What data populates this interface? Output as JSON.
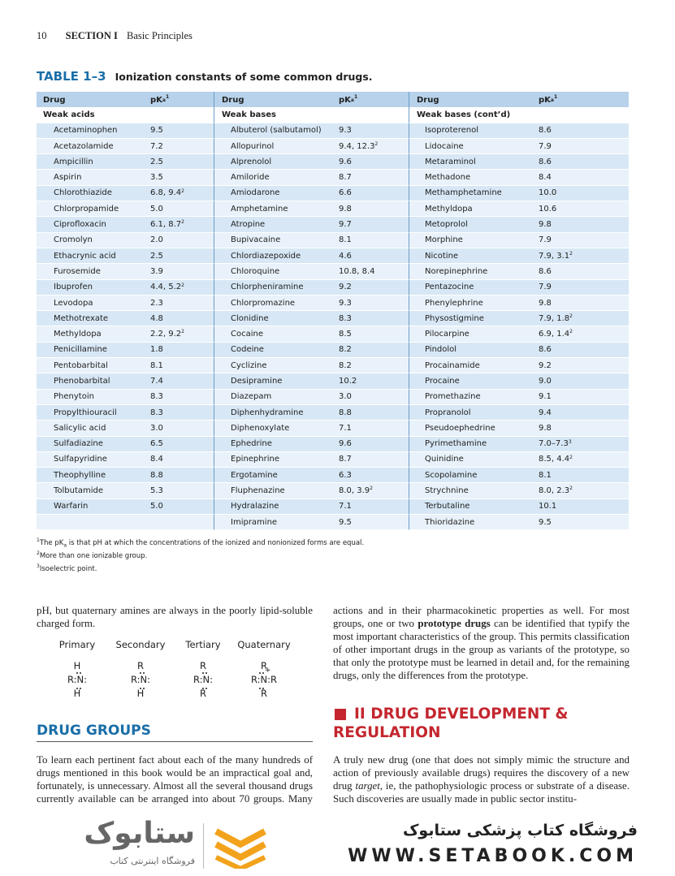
{
  "header": {
    "page_number": "10",
    "section": "SECTION I",
    "section_title": "Basic Principles"
  },
  "table": {
    "label": "TABLE 1–3",
    "caption": "Ionization constants of some common drugs.",
    "columns": [
      {
        "drug_header": "Drug",
        "pka_header": [
          "pK",
          "a",
          "1"
        ],
        "group": "Weak acids",
        "rows": [
          {
            "drug": "Acetaminophen",
            "pka": "9.5"
          },
          {
            "drug": "Acetazolamide",
            "pka": "7.2"
          },
          {
            "drug": "Ampicillin",
            "pka": "2.5"
          },
          {
            "drug": "Aspirin",
            "pka": "3.5"
          },
          {
            "drug": "Chlorothiazide",
            "pka": "6.8, 9.4",
            "note": "2"
          },
          {
            "drug": "Chlorpropamide",
            "pka": "5.0"
          },
          {
            "drug": "Ciprofloxacin",
            "pka": "6.1, 8.7",
            "note": "2"
          },
          {
            "drug": "Cromolyn",
            "pka": "2.0"
          },
          {
            "drug": "Ethacrynic acid",
            "pka": "2.5"
          },
          {
            "drug": "Furosemide",
            "pka": "3.9"
          },
          {
            "drug": "Ibuprofen",
            "pka": "4.4, 5.2",
            "note": "2"
          },
          {
            "drug": "Levodopa",
            "pka": "2.3"
          },
          {
            "drug": "Methotrexate",
            "pka": "4.8"
          },
          {
            "drug": "Methyldopa",
            "pka": "2.2, 9.2",
            "note": "2"
          },
          {
            "drug": "Penicillamine",
            "pka": "1.8"
          },
          {
            "drug": "Pentobarbital",
            "pka": "8.1"
          },
          {
            "drug": "Phenobarbital",
            "pka": "7.4"
          },
          {
            "drug": "Phenytoin",
            "pka": "8.3"
          },
          {
            "drug": "Propylthiouracil",
            "pka": "8.3"
          },
          {
            "drug": "Salicylic acid",
            "pka": "3.0"
          },
          {
            "drug": "Sulfadiazine",
            "pka": "6.5"
          },
          {
            "drug": "Sulfapyridine",
            "pka": "8.4"
          },
          {
            "drug": "Theophylline",
            "pka": "8.8"
          },
          {
            "drug": "Tolbutamide",
            "pka": "5.3"
          },
          {
            "drug": "Warfarin",
            "pka": "5.0"
          }
        ]
      },
      {
        "drug_header": "Drug",
        "pka_header": [
          "pK",
          "a",
          "1"
        ],
        "group": "Weak bases",
        "rows": [
          {
            "drug": "Albuterol (salbutamol)",
            "pka": "9.3"
          },
          {
            "drug": "Allopurinol",
            "pka": "9.4, 12.3",
            "note": "2"
          },
          {
            "drug": "Alprenolol",
            "pka": "9.6"
          },
          {
            "drug": "Amiloride",
            "pka": "8.7"
          },
          {
            "drug": "Amiodarone",
            "pka": "6.6"
          },
          {
            "drug": "Amphetamine",
            "pka": "9.8"
          },
          {
            "drug": "Atropine",
            "pka": "9.7"
          },
          {
            "drug": "Bupivacaine",
            "pka": "8.1"
          },
          {
            "drug": "Chlordiazepoxide",
            "pka": "4.6"
          },
          {
            "drug": "Chloroquine",
            "pka": "10.8, 8.4"
          },
          {
            "drug": "Chlorpheniramine",
            "pka": "9.2"
          },
          {
            "drug": "Chlorpromazine",
            "pka": "9.3"
          },
          {
            "drug": "Clonidine",
            "pka": "8.3"
          },
          {
            "drug": "Cocaine",
            "pka": "8.5"
          },
          {
            "drug": "Codeine",
            "pka": "8.2"
          },
          {
            "drug": "Cyclizine",
            "pka": "8.2"
          },
          {
            "drug": "Desipramine",
            "pka": "10.2"
          },
          {
            "drug": "Diazepam",
            "pka": "3.0"
          },
          {
            "drug": "Diphenhydramine",
            "pka": "8.8"
          },
          {
            "drug": "Diphenoxylate",
            "pka": "7.1"
          },
          {
            "drug": "Ephedrine",
            "pka": "9.6"
          },
          {
            "drug": "Epinephrine",
            "pka": "8.7"
          },
          {
            "drug": "Ergotamine",
            "pka": "6.3"
          },
          {
            "drug": "Fluphenazine",
            "pka": "8.0, 3.9",
            "note": "2"
          },
          {
            "drug": "Hydralazine",
            "pka": "7.1"
          },
          {
            "drug": "Imipramine",
            "pka": "9.5"
          }
        ]
      },
      {
        "drug_header": "Drug",
        "pka_header": [
          "pK",
          "a",
          "1"
        ],
        "group": "Weak bases (cont’d)",
        "rows": [
          {
            "drug": "Isoproterenol",
            "pka": "8.6"
          },
          {
            "drug": "Lidocaine",
            "pka": "7.9"
          },
          {
            "drug": "Metaraminol",
            "pka": "8.6"
          },
          {
            "drug": "Methadone",
            "pka": "8.4"
          },
          {
            "drug": "Methamphetamine",
            "pka": "10.0"
          },
          {
            "drug": "Methyldopa",
            "pka": "10.6"
          },
          {
            "drug": "Metoprolol",
            "pka": "9.8"
          },
          {
            "drug": "Morphine",
            "pka": "7.9"
          },
          {
            "drug": "Nicotine",
            "pka": "7.9, 3.1",
            "note": "2"
          },
          {
            "drug": "Norepinephrine",
            "pka": "8.6"
          },
          {
            "drug": "Pentazocine",
            "pka": "7.9"
          },
          {
            "drug": "Phenylephrine",
            "pka": "9.8"
          },
          {
            "drug": "Physostigmine",
            "pka": "7.9, 1.8",
            "note": "2"
          },
          {
            "drug": "Pilocarpine",
            "pka": "6.9, 1.4",
            "note": "2"
          },
          {
            "drug": "Pindolol",
            "pka": "8.6"
          },
          {
            "drug": "Procainamide",
            "pka": "9.2"
          },
          {
            "drug": "Procaine",
            "pka": "9.0"
          },
          {
            "drug": "Promethazine",
            "pka": "9.1"
          },
          {
            "drug": "Propranolol",
            "pka": "9.4"
          },
          {
            "drug": "Pseudoephedrine",
            "pka": "9.8"
          },
          {
            "drug": "Pyrimethamine",
            "pka": "7.0–7.3",
            "note": "3"
          },
          {
            "drug": "Quinidine",
            "pka": "8.5, 4.4",
            "note": "2"
          },
          {
            "drug": "Scopolamine",
            "pka": "8.1"
          },
          {
            "drug": "Strychnine",
            "pka": "8.0, 2.3",
            "note": "2"
          },
          {
            "drug": "Terbutaline",
            "pka": "10.1"
          },
          {
            "drug": "Thioridazine",
            "pka": "9.5"
          }
        ]
      }
    ],
    "footnotes": [
      {
        "mark": "1",
        "parts": [
          "The pK",
          "a",
          " is that pH at which the concentrations of the ionized and nonionized forms are equal."
        ]
      },
      {
        "mark": "2",
        "parts": [
          "More than one ionizable group."
        ]
      },
      {
        "mark": "3",
        "parts": [
          "Isoelectric point."
        ]
      }
    ]
  },
  "left_column": {
    "intro": "pH, but quaternary amines are always in the poorly lipid-soluble charged form.",
    "amines": [
      {
        "label": "Primary",
        "top": "H",
        "middle": "R:N:",
        "bottom": "H"
      },
      {
        "label": "Secondary",
        "top": "R",
        "middle": "R:N:",
        "bottom": "H"
      },
      {
        "label": "Tertiary",
        "top": "R",
        "middle": "R:N:",
        "bottom": "R"
      },
      {
        "label": "Quaternary",
        "top": "R",
        "middle": "R:N:R",
        "charge": "+",
        "bottom": "R"
      }
    ],
    "heading": "DRUG GROUPS",
    "paragraph": "To learn each pertinent fact about each of the many hundreds of drugs mentioned in this book would be an impractical goal and, fortunately, is unnecessary. Almost all the several thousand drugs currently available can be arranged into about 70 groups. Many of"
  },
  "right_column": {
    "paragraph": [
      "actions and in their pharmacokinetic properties as well. For most groups, one or two ",
      "prototype drugs",
      " can be identified that typify the most important characteristics of the group. This permits classification of other important drugs in the group as variants of the prototype, so that only the prototype must be learned in detail and, for the remaining drugs, only the differences from the prototype."
    ],
    "heading": [
      "II DRUG DEVELOPMENT &",
      "REGULATION"
    ],
    "paragraph2": [
      "A truly new drug (one that does not simply mimic the structure and action of previously available drugs) requires the discovery of a new drug ",
      "target",
      ", ie, the pathophysiologic process or substrate of a disease. Such discoveries are usually made in public sector institu-"
    ]
  },
  "footer": {
    "logo": "ستابوک",
    "logo_tagline": "فروشگاه اینترنتی کتاب",
    "store_name": "فروشگاه کتاب پزشکی ستابوک",
    "website": "WWW.SETABOOK.COM"
  }
}
